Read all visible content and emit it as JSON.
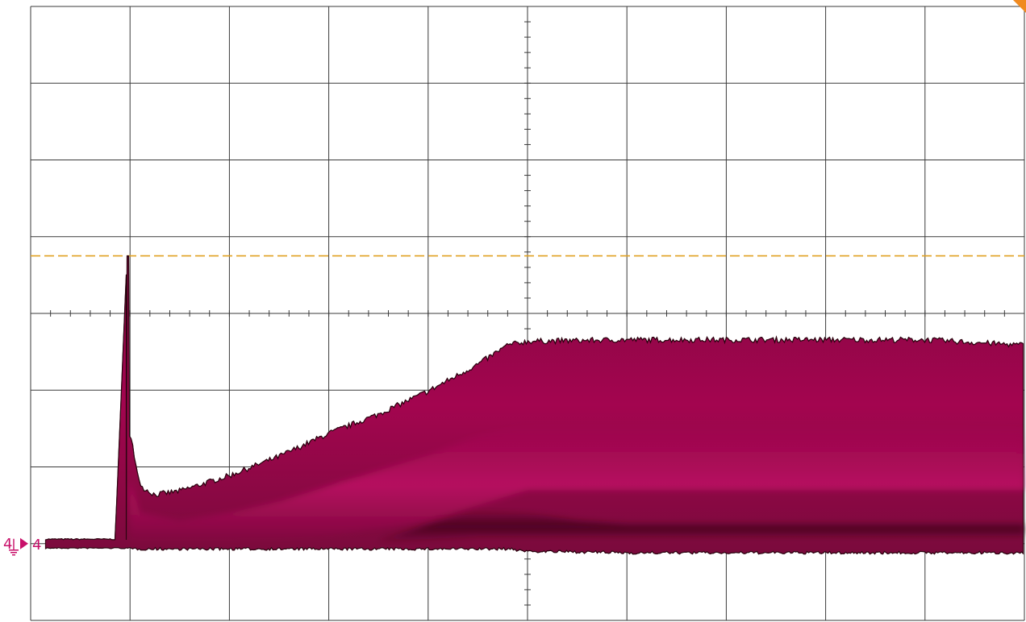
{
  "chart_data": {
    "type": "area",
    "title": "",
    "xlabel": "",
    "ylabel": "",
    "grid": true,
    "x_divisions": 10,
    "y_divisions": 8,
    "xlim": [
      -5,
      5
    ],
    "ylim": [
      -4,
      4
    ],
    "channel": {
      "name": "4",
      "color": "#a8004f",
      "ground_marker_level": -3,
      "trigger_level": 0.75,
      "trigger_color": "#e0a020"
    },
    "series": [
      {
        "name": "4",
        "x": [
          -5.0,
          -4.15,
          -4.03,
          -4.02,
          -3.98,
          -3.95,
          -3.88,
          -3.75,
          -3.5,
          -3.0,
          -2.5,
          -2.0,
          -1.5,
          -1.0,
          -0.5,
          -0.2,
          0.0,
          1.0,
          2.0,
          3.0,
          4.0,
          5.0
        ],
        "upper": [
          -2.95,
          -2.95,
          0.75,
          -1.6,
          -1.7,
          -2.0,
          -2.3,
          -2.4,
          -2.35,
          -2.15,
          -1.9,
          -1.6,
          -1.35,
          -1.05,
          -0.7,
          -0.45,
          -0.4,
          -0.38,
          -0.38,
          -0.38,
          -0.38,
          -0.45
        ],
        "lower": [
          -3.05,
          -3.05,
          -3.05,
          -3.05,
          -3.05,
          -3.05,
          -3.05,
          -3.05,
          -3.05,
          -3.05,
          -3.05,
          -3.05,
          -3.05,
          -3.05,
          -3.05,
          -3.05,
          -3.08,
          -3.1,
          -3.1,
          -3.1,
          -3.1,
          -3.1
        ]
      }
    ],
    "bright_band": {
      "x": [
        -4.0,
        -3.9,
        -3.5,
        -3.0,
        -2.5,
        -2.0,
        -1.5,
        -1.0,
        -0.5,
        0.0,
        1.0,
        2.0,
        3.0,
        4.0,
        5.0
      ],
      "upper": [
        -2.2,
        -2.6,
        -2.7,
        -2.6,
        -2.45,
        -2.25,
        -2.05,
        -1.85,
        -1.6,
        -1.45,
        -1.45,
        -1.45,
        -1.45,
        -1.45,
        -1.5
      ],
      "lower": [
        -3.0,
        -3.0,
        -3.0,
        -3.0,
        -2.95,
        -2.9,
        -2.8,
        -2.7,
        -2.5,
        -2.3,
        -2.3,
        -2.3,
        -2.3,
        -2.3,
        -2.3
      ]
    },
    "dark_band": {
      "x": [
        -1.5,
        -1.0,
        -0.5,
        0.0,
        0.5,
        1.0,
        2.0,
        3.0,
        4.0,
        5.0
      ],
      "upper": [
        -2.95,
        -2.75,
        -2.55,
        -2.6,
        -2.7,
        -2.75,
        -2.75,
        -2.75,
        -2.75,
        -2.75
      ],
      "lower": [
        -3.0,
        -2.95,
        -2.9,
        -2.9,
        -2.9,
        -2.9,
        -2.9,
        -2.9,
        -2.9,
        -2.9
      ]
    }
  }
}
